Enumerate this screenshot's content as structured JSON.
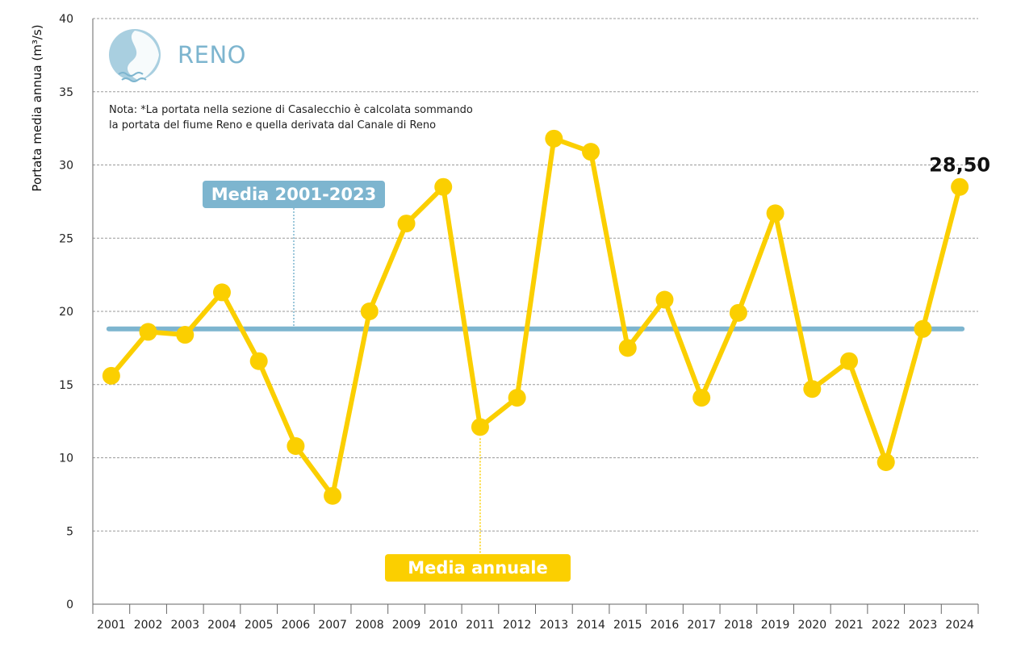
{
  "header": {
    "river_name": "RENO",
    "note_line1": "Nota: *La portata nella sezione di Casalecchio è calcolata sommando",
    "note_line2": "la portata del fiume Reno e quella derivata dal Canale di Reno"
  },
  "legend": {
    "mean_label": "Media 2001-2023",
    "annual_label": "Media annuale"
  },
  "colors": {
    "series": "#fbcf00",
    "mean_line": "#7db5cf",
    "grid": "#9a9a9a",
    "axis": "#666666"
  },
  "chart_data": {
    "type": "line",
    "title": "",
    "xlabel": "",
    "ylabel": "Portata media annua (m³/s)",
    "ylim": [
      0,
      40
    ],
    "yticks": [
      0,
      5,
      10,
      15,
      20,
      25,
      30,
      35,
      40
    ],
    "grid": true,
    "categories": [
      "2001",
      "2002",
      "2003",
      "2004",
      "2005",
      "2006",
      "2007",
      "2008",
      "2009",
      "2010",
      "2011",
      "2012",
      "2013",
      "2014",
      "2015",
      "2016",
      "2017",
      "2018",
      "2019",
      "2020",
      "2021",
      "2022",
      "2023",
      "2024"
    ],
    "series": [
      {
        "name": "Media annuale",
        "values": [
          15.6,
          18.6,
          18.4,
          21.3,
          16.6,
          10.8,
          7.4,
          20.0,
          26.0,
          28.5,
          12.1,
          14.1,
          31.8,
          30.9,
          17.5,
          20.8,
          14.1,
          19.9,
          26.7,
          14.7,
          16.6,
          9.7,
          18.8,
          28.5
        ]
      }
    ],
    "mean_line": {
      "name": "Media 2001-2023",
      "value": 18.8
    },
    "annotations": [
      {
        "category": "2024",
        "text": "28,50"
      }
    ]
  }
}
